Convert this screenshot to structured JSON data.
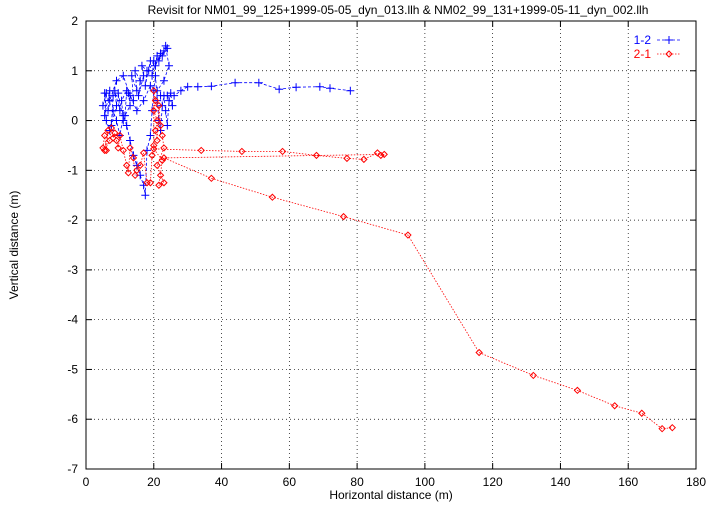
{
  "chart_data": {
    "type": "scatter",
    "title": "Revisit for NM01_99_125+1999-05-05_dyn_013.llh & NM02_99_131+1999-05-11_dyn_002.llh",
    "xlabel": "Horizontal distance (m)",
    "ylabel": "Vertical distance (m)",
    "xlim": [
      0,
      180
    ],
    "ylim": [
      -7,
      2
    ],
    "xticks": [
      0,
      20,
      40,
      60,
      80,
      100,
      120,
      140,
      160,
      180
    ],
    "yticks": [
      -7,
      -6,
      -5,
      -4,
      -3,
      -2,
      -1,
      0,
      1,
      2
    ],
    "grid": true,
    "grid_style": "dotted",
    "legend_position": "top-right",
    "series": [
      {
        "name": "1-2",
        "color": "#0000ff",
        "marker": "plus",
        "line": "dashed",
        "points": [
          [
            5,
            0.3
          ],
          [
            6,
            0.55
          ],
          [
            5.5,
            0.1
          ],
          [
            7,
            0.6
          ],
          [
            6.5,
            0.2
          ],
          [
            8,
            0.5
          ],
          [
            7.5,
            -0.1
          ],
          [
            9,
            0.3
          ],
          [
            8.5,
            0.6
          ],
          [
            10,
            0.2
          ],
          [
            9.5,
            0.55
          ],
          [
            11,
            0.0
          ],
          [
            10.5,
            0.4
          ],
          [
            12,
            0.6
          ],
          [
            11.5,
            0.1
          ],
          [
            13,
            0.3
          ],
          [
            12.5,
            0.55
          ],
          [
            14,
            0.4
          ],
          [
            13.5,
            0.9
          ],
          [
            15,
            0.6
          ],
          [
            14.5,
            1.0
          ],
          [
            16,
            0.8
          ],
          [
            15.5,
            0.5
          ],
          [
            17,
            0.9
          ],
          [
            16.5,
            1.1
          ],
          [
            18,
            1.0
          ],
          [
            17.5,
            0.7
          ],
          [
            19,
            1.2
          ],
          [
            18.5,
            1.0
          ],
          [
            20,
            1.2
          ],
          [
            19.5,
            0.9
          ],
          [
            21,
            1.3
          ],
          [
            20.5,
            1.1
          ],
          [
            22,
            1.35
          ],
          [
            21.5,
            1.2
          ],
          [
            23,
            1.4
          ],
          [
            22.5,
            1.3
          ],
          [
            24,
            1.45
          ],
          [
            23.5,
            1.5
          ],
          [
            24.5,
            1.1
          ],
          [
            23,
            0.8
          ],
          [
            21,
            0.6
          ],
          [
            19,
            0.7
          ],
          [
            17,
            0.4
          ],
          [
            15,
            0.2
          ],
          [
            13,
            0.5
          ],
          [
            11,
            0.9
          ],
          [
            9,
            0.8
          ],
          [
            7,
            0.4
          ],
          [
            5.5,
            0.55
          ],
          [
            6,
            0.0
          ],
          [
            7,
            -0.2
          ],
          [
            8,
            0.2
          ],
          [
            9,
            0.0
          ],
          [
            10,
            -0.3
          ],
          [
            11,
            0.1
          ],
          [
            12,
            -0.1
          ],
          [
            13,
            -0.4
          ],
          [
            14,
            -0.7
          ],
          [
            15,
            -0.9
          ],
          [
            16,
            -1.1
          ],
          [
            17,
            -1.3
          ],
          [
            17.5,
            -1.5
          ],
          [
            18,
            -0.6
          ],
          [
            19,
            -0.3
          ],
          [
            19.5,
            0.2
          ],
          [
            20,
            0.6
          ],
          [
            20.5,
            0.9
          ],
          [
            21,
            0.4
          ],
          [
            21.5,
            0.0
          ],
          [
            22,
            -0.2
          ],
          [
            22.5,
            0.3
          ],
          [
            23,
            0.5
          ],
          [
            23.5,
            0.2
          ],
          [
            24,
            -0.1
          ],
          [
            24.5,
            0.4
          ],
          [
            25,
            0.55
          ],
          [
            25.5,
            0.3
          ],
          [
            24,
            0.5
          ],
          [
            22,
            0.5
          ],
          [
            26,
            0.5
          ],
          [
            28,
            0.6
          ],
          [
            30,
            0.68
          ],
          [
            33,
            0.68
          ],
          [
            37,
            0.69
          ],
          [
            44,
            0.76
          ],
          [
            51,
            0.76
          ],
          [
            57,
            0.63
          ],
          [
            62,
            0.67
          ],
          [
            69,
            0.68
          ],
          [
            72,
            0.65
          ],
          [
            78,
            0.6
          ]
        ]
      },
      {
        "name": "2-1",
        "color": "#ff0000",
        "marker": "diamond",
        "line": "dotted",
        "points": [
          [
            5,
            -0.55
          ],
          [
            5.5,
            -0.3
          ],
          [
            6,
            -0.6
          ],
          [
            6.5,
            -0.2
          ],
          [
            5.5,
            -0.6
          ],
          [
            7,
            -0.4
          ],
          [
            7.5,
            -0.15
          ],
          [
            8,
            -0.35
          ],
          [
            8.5,
            -0.25
          ],
          [
            9,
            -0.4
          ],
          [
            9.5,
            -0.55
          ],
          [
            10,
            -0.3
          ],
          [
            11,
            -0.6
          ],
          [
            12,
            -0.9
          ],
          [
            12.5,
            -1.05
          ],
          [
            13,
            -0.55
          ],
          [
            14,
            -0.75
          ],
          [
            14.5,
            -1.1
          ],
          [
            15,
            -1.0
          ],
          [
            16,
            -0.9
          ],
          [
            17,
            -0.65
          ],
          [
            18,
            -1.25
          ],
          [
            19,
            -1.25
          ],
          [
            19.5,
            -0.7
          ],
          [
            20,
            -0.5
          ],
          [
            20,
            0.6
          ],
          [
            20.5,
            0.4
          ],
          [
            20,
            0.2
          ],
          [
            21,
            0.0
          ],
          [
            20.5,
            -0.2
          ],
          [
            21,
            -0.4
          ],
          [
            21.5,
            0.3
          ],
          [
            22,
            -0.1
          ],
          [
            22.5,
            -0.3
          ],
          [
            23,
            -0.55
          ],
          [
            21,
            -0.9
          ],
          [
            22,
            -1.1
          ],
          [
            23,
            -1.25
          ],
          [
            21.5,
            -1.3
          ],
          [
            22.5,
            -0.8
          ],
          [
            20,
            -0.57
          ],
          [
            34,
            -0.6
          ],
          [
            46,
            -0.62
          ],
          [
            58,
            -0.62
          ],
          [
            68,
            -0.7
          ],
          [
            77,
            -0.76
          ],
          [
            82,
            -0.78
          ],
          [
            86,
            -0.65
          ],
          [
            87,
            -0.7
          ],
          [
            88,
            -0.68
          ],
          [
            23,
            -0.75
          ],
          [
            37,
            -1.16
          ],
          [
            55,
            -1.54
          ],
          [
            76,
            -1.93
          ],
          [
            95,
            -2.3
          ],
          [
            116,
            -4.66
          ],
          [
            132,
            -5.12
          ],
          [
            145,
            -5.42
          ],
          [
            156,
            -5.73
          ],
          [
            164,
            -5.88
          ],
          [
            170,
            -6.19
          ],
          [
            173,
            -6.17
          ]
        ]
      }
    ]
  }
}
